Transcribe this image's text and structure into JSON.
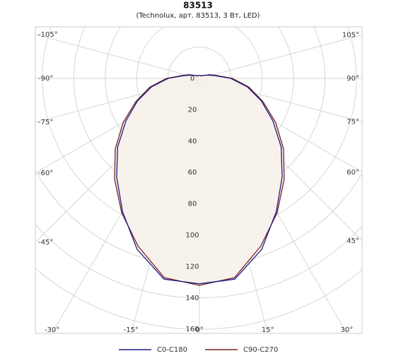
{
  "chart_data": {
    "type": "polar",
    "title": "83513",
    "subtitle": "(Technolux, арт. 83513, 3 Вт, LED)",
    "theta": [
      -180,
      -170,
      -160,
      -150,
      -140,
      -130,
      -120,
      -110,
      -100,
      -90,
      -80,
      -70,
      -60,
      -50,
      -40,
      -30,
      -20,
      -10,
      0,
      10,
      20,
      30,
      40,
      50,
      60,
      70,
      80,
      90,
      100,
      110,
      120,
      130,
      140,
      150,
      160,
      170,
      180
    ],
    "series": [
      {
        "name": "C0-C180",
        "color": "#1c1c8a",
        "values": [
          2,
          2,
          2,
          2,
          2,
          3,
          4,
          6,
          10,
          20,
          31,
          42,
          54,
          68,
          82,
          98,
          116,
          130,
          131,
          130,
          116,
          98,
          82,
          68,
          54,
          42,
          31,
          20,
          10,
          6,
          4,
          3,
          2,
          2,
          2,
          2,
          2
        ]
      },
      {
        "name": "C90-C270",
        "color": "#7a1f1f",
        "values": [
          2,
          2,
          2,
          2,
          2,
          3,
          4,
          7,
          11,
          21,
          32,
          43,
          56,
          70,
          84,
          99,
          114,
          129,
          132,
          129,
          114,
          99,
          84,
          70,
          56,
          43,
          32,
          21,
          11,
          7,
          4,
          3,
          2,
          2,
          2,
          2,
          2
        ]
      }
    ],
    "rlim": [
      0,
      160
    ],
    "rticks": [
      0,
      20,
      40,
      60,
      80,
      100,
      120,
      140,
      160
    ],
    "thetaticks": [
      {
        "value": -105,
        "label": "-105°"
      },
      {
        "value": -90,
        "label": "-90°"
      },
      {
        "value": -75,
        "label": "-75°"
      },
      {
        "value": -60,
        "label": "-60°"
      },
      {
        "value": -45,
        "label": "-45°"
      },
      {
        "value": -30,
        "label": "-30°"
      },
      {
        "value": -15,
        "label": "-15°"
      },
      {
        "value": 0,
        "label": "0°"
      },
      {
        "value": 15,
        "label": "15°"
      },
      {
        "value": 30,
        "label": "30°"
      },
      {
        "value": 45,
        "label": "45°"
      },
      {
        "value": 60,
        "label": "60°"
      },
      {
        "value": 75,
        "label": "75°"
      },
      {
        "value": 90,
        "label": "90°"
      },
      {
        "value": 105,
        "label": "105°"
      }
    ],
    "grid": true,
    "fill_color": "#f6f1e9",
    "legend": "bottom"
  }
}
